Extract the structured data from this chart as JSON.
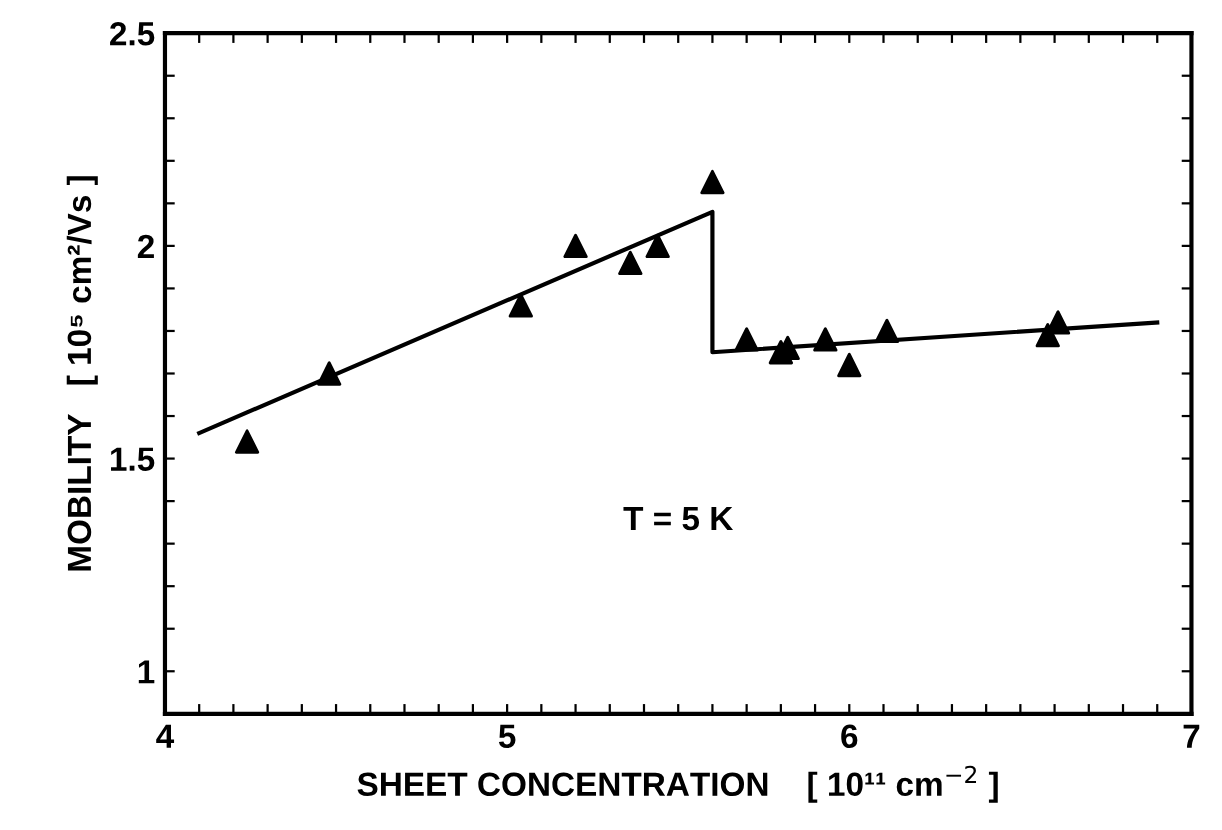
{
  "chart_data": {
    "type": "scatter",
    "xlabel": "SHEET CONCENTRATION    [ 10¹¹ cm$^{−2}$ ]",
    "ylabel": "MOBILITY   [ 10⁵ cm²/Vs ]",
    "annotations": [
      "T = 5 K"
    ],
    "xlim": [
      4,
      7
    ],
    "ylim": [
      0.9,
      2.5
    ],
    "xticks": [
      4,
      {
        "value": 4.1,
        "label": null
      },
      {
        "value": 4.2,
        "label": null
      },
      {
        "value": 4.3,
        "label": null
      },
      {
        "value": 4.4,
        "label": null
      },
      {
        "value": 4.5,
        "label": null
      },
      {
        "value": 4.6,
        "label": null
      },
      {
        "value": 4.7,
        "label": null
      },
      {
        "value": 4.8,
        "label": null
      },
      {
        "value": 4.9,
        "label": null
      },
      5,
      {
        "value": 5.1,
        "label": null
      },
      {
        "value": 5.2,
        "label": null
      },
      {
        "value": 5.3,
        "label": null
      },
      {
        "value": 5.4,
        "label": null
      },
      {
        "value": 5.5,
        "label": null
      },
      {
        "value": 5.6,
        "label": null
      },
      {
        "value": 5.7,
        "label": null
      },
      {
        "value": 5.8,
        "label": null
      },
      {
        "value": 5.9,
        "label": null
      },
      6,
      {
        "value": 6.1,
        "label": null
      },
      {
        "value": 6.2,
        "label": null
      },
      {
        "value": 6.3,
        "label": null
      },
      {
        "value": 6.4,
        "label": null
      },
      {
        "value": 6.5,
        "label": null
      },
      {
        "value": 6.6,
        "label": null
      },
      {
        "value": 6.7,
        "label": null
      },
      {
        "value": 6.8,
        "label": null
      },
      {
        "value": 6.9,
        "label": null
      },
      7
    ],
    "yticks": [
      {
        "value": 1.0,
        "label": "1"
      },
      {
        "value": 1.1,
        "label": null
      },
      {
        "value": 1.2,
        "label": null
      },
      {
        "value": 1.3,
        "label": null
      },
      {
        "value": 1.4,
        "label": null
      },
      1.5,
      {
        "value": 1.6,
        "label": null
      },
      {
        "value": 1.7,
        "label": null
      },
      {
        "value": 1.8,
        "label": null
      },
      {
        "value": 1.9,
        "label": null
      },
      2,
      {
        "value": 2.1,
        "label": null
      },
      {
        "value": 2.2,
        "label": null
      },
      {
        "value": 2.3,
        "label": null
      },
      {
        "value": 2.4,
        "label": null
      },
      2.5
    ],
    "grid": false,
    "legend": false,
    "series": [
      {
        "marker": "triangle",
        "color": "#000000",
        "x": [
          4.24,
          4.48,
          5.04,
          5.2,
          5.36,
          5.44,
          5.6,
          5.7,
          5.8,
          5.82,
          5.93,
          6.0,
          6.11,
          6.58,
          6.61
        ],
        "values": [
          1.54,
          1.7,
          1.86,
          2.0,
          1.96,
          2.0,
          2.15,
          1.78,
          1.75,
          1.76,
          1.78,
          1.72,
          1.8,
          1.79,
          1.82
        ]
      },
      {
        "type": "line",
        "marker": "none",
        "line_style": "solid",
        "color": "#000000",
        "x": [
          4.1,
          5.6,
          5.6,
          6.9
        ],
        "values": [
          1.56,
          2.08,
          1.75,
          1.82
        ]
      }
    ]
  }
}
